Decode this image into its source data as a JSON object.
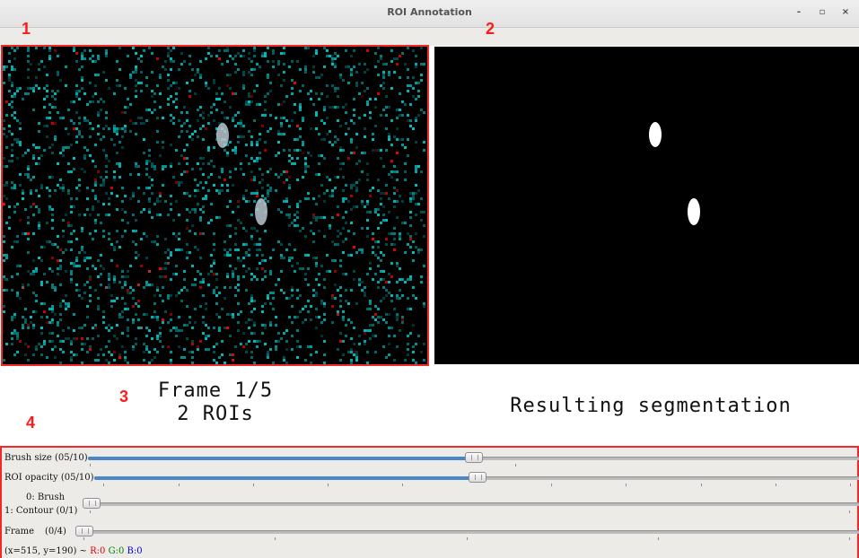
{
  "window": {
    "title": "ROI Annotation",
    "minimize_label": "-",
    "maximize_label": "▫",
    "close_label": "×"
  },
  "annotations": [
    "1",
    "2",
    "3",
    "4"
  ],
  "left_panel": {
    "frame_text": "Frame 1/5",
    "roi_text": "2 ROIs",
    "highlight_color": "#ee2a2a",
    "noise_colors": [
      "#00bfbf",
      "#ff0000"
    ]
  },
  "right_panel": {
    "caption": "Resulting segmentation"
  },
  "controls": {
    "brush_size": {
      "label": "Brush size (05/10)",
      "fraction": 0.5
    },
    "roi_opacity": {
      "label": "ROI opacity (05/10)",
      "fraction": 0.5
    },
    "mode": {
      "label_line1": "0: Brush",
      "label_line2": "1: Contour (0/1)",
      "fraction": 0
    },
    "frame": {
      "label": "Frame",
      "value": "(0/4)",
      "fraction": 0
    }
  },
  "status": {
    "coords": "(x=515, y=190) ~",
    "r": "R:0",
    "g": "G:0",
    "b": "B:0"
  }
}
